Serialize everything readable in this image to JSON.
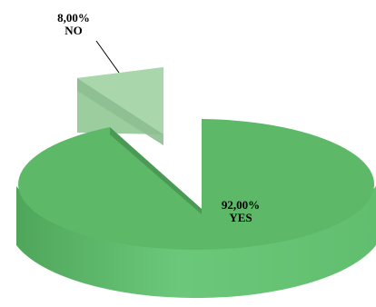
{
  "chart_data": {
    "type": "pie",
    "slices": [
      {
        "name": "YES",
        "value": 92,
        "label": "92,00%",
        "color": "#5cb85c"
      },
      {
        "name": "NO",
        "value": 8,
        "label": "8,00%",
        "color": "#8fc98f"
      }
    ],
    "exploded": "NO",
    "style": "3d"
  }
}
